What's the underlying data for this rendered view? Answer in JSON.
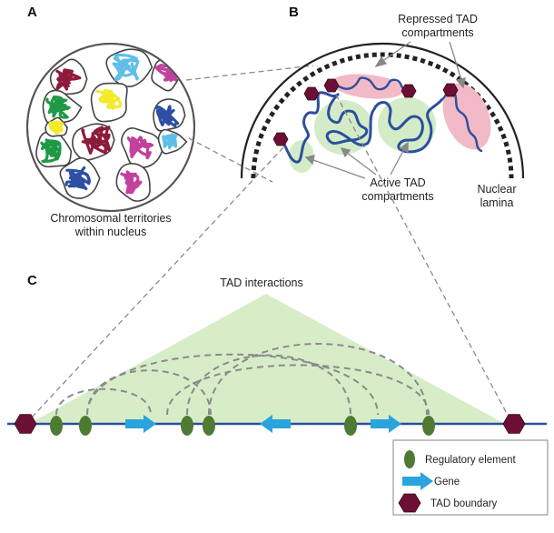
{
  "panels": {
    "a": {
      "letter": "A",
      "caption_line1": "Chromosomal territories",
      "caption_line2": "within nucleus"
    },
    "b": {
      "letter": "B",
      "repressed_line1": "Repressed TAD",
      "repressed_line2": "compartments",
      "active_line1": "Active TAD",
      "active_line2": "compartments",
      "lamina_line1": "Nuclear",
      "lamina_line2": "lamina"
    },
    "c": {
      "letter": "C",
      "title": "TAD interactions"
    }
  },
  "legend": {
    "regulatory": "Regulatory element",
    "gene": "Gene",
    "boundary": "TAD boundary"
  },
  "colors": {
    "chromatin": "#2b4f9e",
    "regulatory": "#4f7a32",
    "gene": "#2aa4dc",
    "boundary": "#6b1034",
    "active": "#d3ecc7",
    "repressed": "#f2b9c6",
    "tad_triangle": "#d7edc8",
    "loop": "#8a8a8a",
    "territories": [
      "#8e1a3a",
      "#5fbfe8",
      "#c2419d",
      "#1e9a46",
      "#f4ea2a",
      "#2e4ea3"
    ]
  }
}
